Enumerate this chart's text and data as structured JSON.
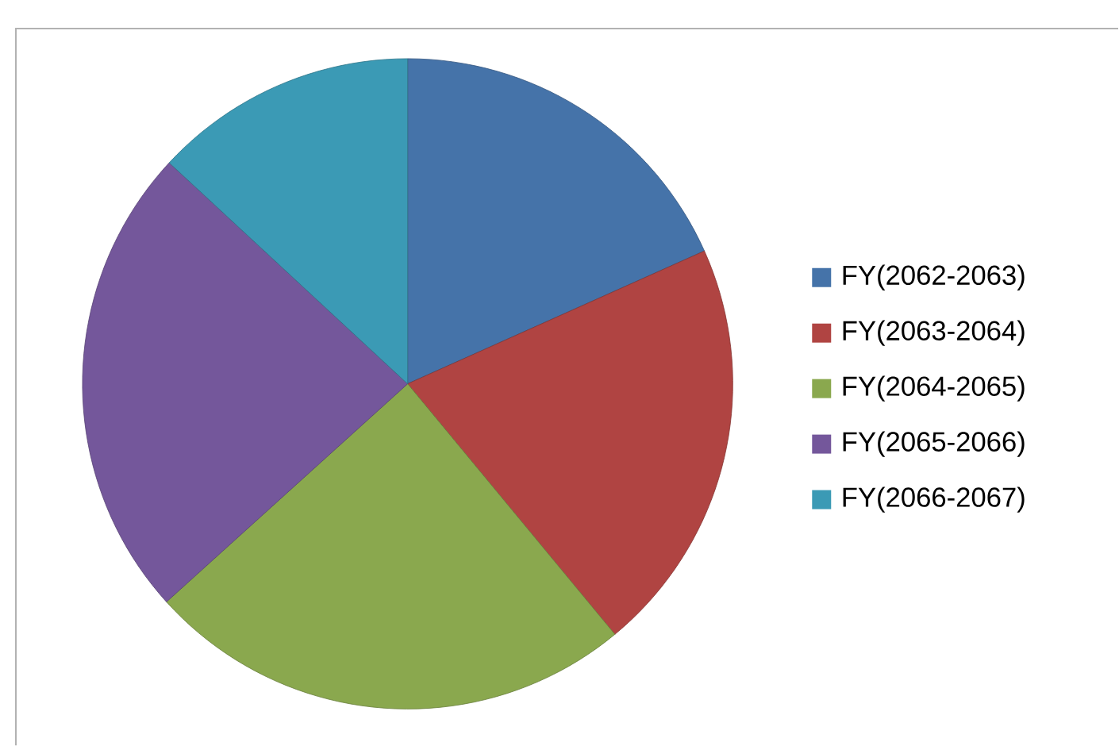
{
  "chart_data": {
    "type": "pie",
    "categories": [
      "FY(2062-2063)",
      "FY(2063-2064)",
      "FY(2064-2065)",
      "FY(2065-2066)",
      "FY(2066-2067)"
    ],
    "values": [
      18.3,
      20.7,
      24.3,
      23.6,
      13.1
    ],
    "colors": [
      "#4573a9",
      "#b04442",
      "#8aa84e",
      "#74579b",
      "#3b9ab5"
    ],
    "legend": "right"
  }
}
